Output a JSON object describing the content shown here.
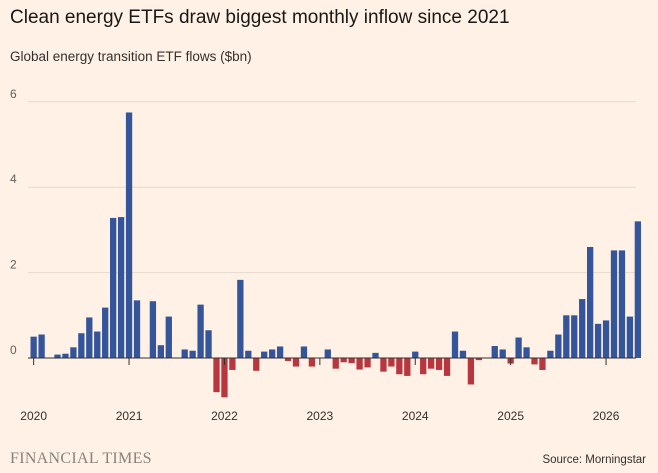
{
  "title": "Clean energy ETFs draw biggest monthly inflow since 2021",
  "subtitle": "Global energy transition ETF flows ($bn)",
  "source": "Source: Morningstar",
  "publisher": "FINANCIAL TIMES",
  "colors": {
    "positive": "#34559a",
    "negative": "#b8373f",
    "background": "#fff1e5",
    "gridline": "#e6d9ce",
    "zero_line": "#33302e"
  },
  "chart_data": {
    "type": "bar",
    "title": "Clean energy ETFs draw biggest monthly inflow since 2021",
    "subtitle": "Global energy transition ETF flows ($bn)",
    "xlabel": "",
    "ylabel": "",
    "ylim": [
      -1,
      6
    ],
    "yticks": [
      0,
      2,
      4,
      6
    ],
    "xtick_labels": [
      "2020",
      "2021",
      "2022",
      "2023",
      "2024",
      "2025",
      "2026"
    ],
    "start_month": "2020-01",
    "grid": true,
    "values": [
      0.5,
      0.55,
      0.0,
      0.08,
      0.1,
      0.25,
      0.58,
      0.95,
      0.62,
      1.18,
      3.28,
      3.3,
      5.75,
      1.35,
      0.0,
      1.33,
      0.3,
      0.97,
      0.0,
      0.2,
      0.17,
      1.25,
      0.65,
      -0.8,
      -0.92,
      -0.28,
      1.83,
      0.17,
      -0.3,
      0.15,
      0.2,
      0.27,
      -0.07,
      -0.2,
      0.27,
      -0.2,
      0.0,
      0.2,
      -0.25,
      -0.1,
      -0.12,
      -0.27,
      -0.22,
      0.12,
      -0.32,
      -0.2,
      -0.38,
      -0.42,
      0.15,
      -0.38,
      -0.25,
      -0.28,
      -0.42,
      0.62,
      0.17,
      -0.62,
      -0.05,
      0.0,
      0.28,
      0.2,
      -0.13,
      0.48,
      0.25,
      -0.15,
      -0.28,
      0.17,
      0.55,
      1.0,
      1.0,
      1.38,
      2.6,
      0.8,
      0.88,
      2.52,
      2.52,
      0.97,
      3.2
    ]
  }
}
